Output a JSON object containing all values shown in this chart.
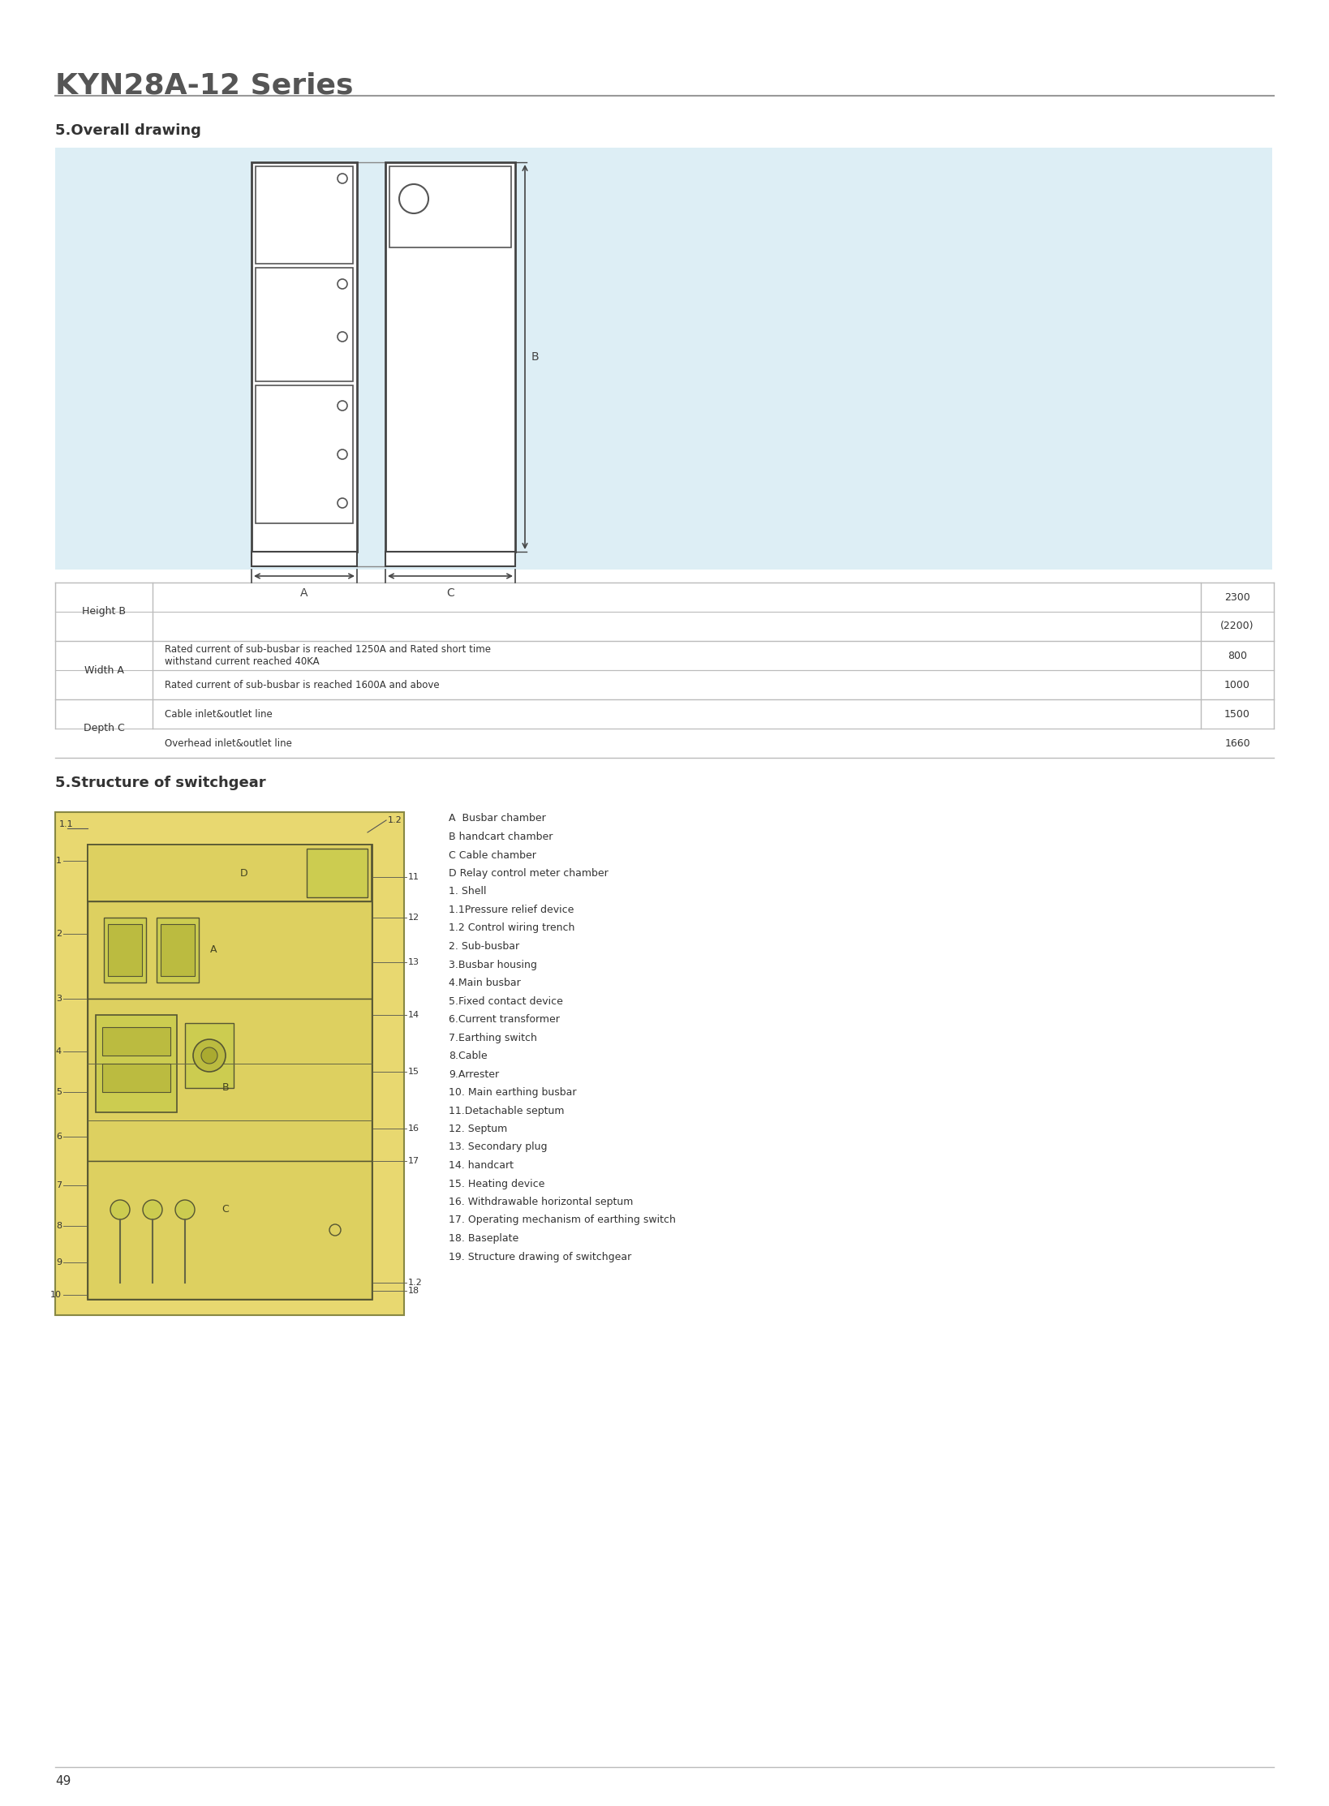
{
  "title": "KYN28A-12 Series",
  "section1_title": "5.Overall drawing",
  "section2_title": "5.Structure of switchgear",
  "bg_color": "#ffffff",
  "drawing_bg": "#ddeef5",
  "page_number": "49",
  "table_rows": [
    {
      "header": "Height B",
      "sub_rows": [
        {
          "condition": "",
          "value": "2300"
        },
        {
          "condition": "",
          "value": "(2200)"
        }
      ]
    },
    {
      "header": "Width A",
      "sub_rows": [
        {
          "condition": "Rated current of sub-busbar is reached 1250A and Rated short time\nwithstand current reached 40KA",
          "value": "800"
        },
        {
          "condition": "Rated current of sub-busbar is reached 1600A and above",
          "value": "1000"
        }
      ]
    },
    {
      "header": "Depth C",
      "sub_rows": [
        {
          "condition": "Cable inlet&outlet line",
          "value": "1500"
        },
        {
          "condition": "Overhead inlet&outlet line",
          "value": "1660"
        }
      ]
    }
  ],
  "legend_items": [
    "A  Busbar chamber",
    "B handcart chamber",
    "C Cable chamber",
    "D Relay control meter chamber",
    "1. Shell",
    "1.1Pressure relief device",
    "1.2 Control wiring trench",
    "2. Sub-busbar",
    "3.Busbar housing",
    "4.Main busbar",
    "5.Fixed contact device",
    "6.Current transformer",
    "7.Earthing switch",
    "8.Cable",
    "9.Arrester",
    "10. Main earthing busbar",
    "11.Detachable septum",
    "12. Septum",
    "13. Secondary plug",
    "14. handcart",
    "15. Heating device",
    "16. Withdrawable horizontal septum",
    "17. Operating mechanism of earthing switch",
    "18. Baseplate",
    "19. Structure drawing of switchgear"
  ]
}
